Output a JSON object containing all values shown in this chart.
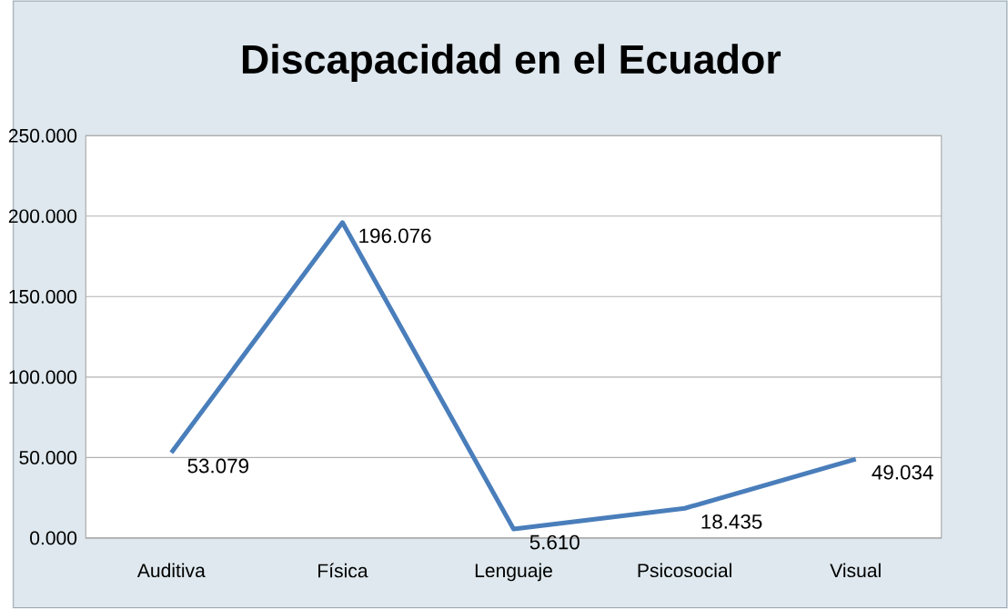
{
  "chart_data": {
    "type": "line",
    "title": "Discapacidad en el Ecuador",
    "categories": [
      "Auditiva",
      "Física",
      "Lenguaje",
      "Psicosocial",
      "Visual"
    ],
    "values": [
      53.079,
      196.076,
      5.61,
      18.435,
      49.034
    ],
    "value_labels": [
      "53.079",
      "196.076",
      "5.610",
      "18.435",
      "49.034"
    ],
    "color": "#4a7ebb",
    "ylim": [
      0,
      250
    ],
    "yticks": [
      {
        "value": 0,
        "label": "0.000"
      },
      {
        "value": 50,
        "label": "50.000"
      },
      {
        "value": 100,
        "label": "100.000"
      },
      {
        "value": 150,
        "label": "150.000"
      },
      {
        "value": 200,
        "label": "200.000"
      },
      {
        "value": 250,
        "label": "250.000"
      }
    ],
    "grid": "y"
  }
}
